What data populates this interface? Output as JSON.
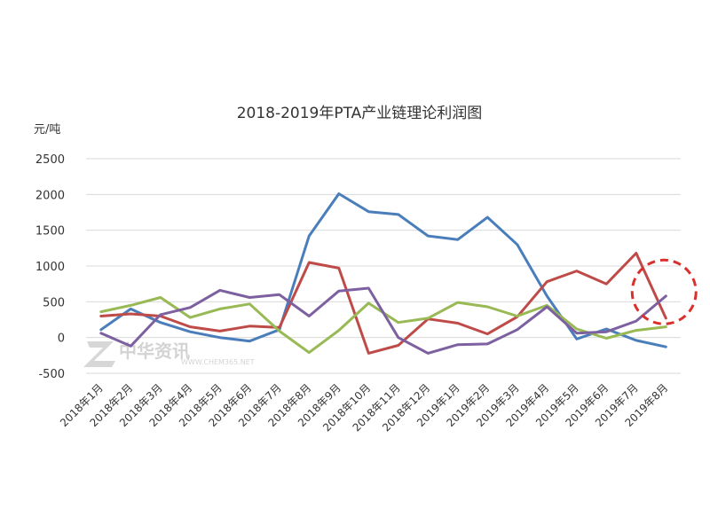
{
  "chart_data": {
    "type": "line",
    "title": "2018-2019年PTA产业链理论利润图",
    "ylabel": "元/吨",
    "xlabel": "",
    "ylim": [
      -500,
      2500
    ],
    "yticks": [
      "2500",
      "2000",
      "1500",
      "1000",
      "500",
      "0",
      "-500"
    ],
    "categories": [
      "2018年1月",
      "2018年2月",
      "2018年3月",
      "2018年4月",
      "2018年5月",
      "2018年6月",
      "2018年7月",
      "2018年8月",
      "2018年9月",
      "2018年10月",
      "2018年11月",
      "2018年12月",
      "2019年1月",
      "2019年2月",
      "2019年3月",
      "2019年4月",
      "2019年5月",
      "2019年6月",
      "2019年7月",
      "2019年8月"
    ],
    "grid": true,
    "legend": "none",
    "series": [
      {
        "color": "#4a7ebb",
        "values": [
          110,
          400,
          210,
          80,
          0,
          -50,
          110,
          1420,
          2010,
          1760,
          1720,
          1420,
          1370,
          1680,
          1300,
          580,
          -20,
          120,
          -40,
          -130
        ]
      },
      {
        "color": "#be4b48",
        "values": [
          300,
          330,
          300,
          150,
          90,
          160,
          140,
          1050,
          970,
          -220,
          -110,
          260,
          200,
          50,
          290,
          780,
          930,
          750,
          1180,
          270
        ]
      },
      {
        "color": "#98b954",
        "values": [
          360,
          450,
          560,
          280,
          400,
          470,
          90,
          -210,
          100,
          480,
          210,
          270,
          490,
          430,
          300,
          450,
          120,
          -10,
          100,
          150
        ]
      },
      {
        "color": "#7d60a0",
        "values": [
          60,
          -120,
          320,
          420,
          660,
          560,
          600,
          300,
          650,
          690,
          0,
          -220,
          -100,
          -90,
          110,
          430,
          60,
          80,
          230,
          580
        ]
      }
    ],
    "annotation": {
      "type": "dashed-circle",
      "color": "#d9302c",
      "category_index": 19,
      "y_value": 550
    }
  },
  "watermark": {
    "text": "中华资讯",
    "subtext": "WWW.CHEM365.NET"
  }
}
